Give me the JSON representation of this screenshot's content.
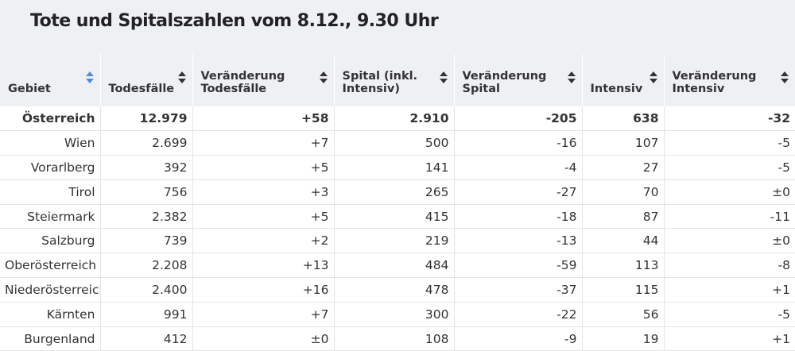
{
  "title": "Tote und Spitalszahlen vom 8.12., 9.30 Uhr",
  "columns": [
    {
      "label": "Gebiet",
      "sort_active": true
    },
    {
      "label": "Todesfälle",
      "sort_active": false
    },
    {
      "label": "Veränderung Todesfälle",
      "sort_active": false
    },
    {
      "label": "Spital (inkl. Intensiv)",
      "sort_active": false
    },
    {
      "label": "Veränderung Spital",
      "sort_active": false
    },
    {
      "label": "Intensiv",
      "sort_active": false
    },
    {
      "label": "Veränderung Intensiv",
      "sort_active": false
    }
  ],
  "rows": [
    [
      "Österreich",
      "12.979",
      "+58",
      "2.910",
      "-205",
      "638",
      "-32"
    ],
    [
      "Wien",
      "2.699",
      "+7",
      "500",
      "-16",
      "107",
      "-5"
    ],
    [
      "Vorarlberg",
      "392",
      "+5",
      "141",
      "-4",
      "27",
      "-5"
    ],
    [
      "Tirol",
      "756",
      "+3",
      "265",
      "-27",
      "70",
      "±0"
    ],
    [
      "Steiermark",
      "2.382",
      "+5",
      "415",
      "-18",
      "87",
      "-11"
    ],
    [
      "Salzburg",
      "739",
      "+2",
      "219",
      "-13",
      "44",
      "±0"
    ],
    [
      "Oberösterreich",
      "2.208",
      "+13",
      "484",
      "-59",
      "113",
      "-8"
    ],
    [
      "Niederösterreich",
      "2.400",
      "+16",
      "478",
      "-37",
      "115",
      "+1"
    ],
    [
      "Kärnten",
      "991",
      "+7",
      "300",
      "-22",
      "56",
      "-5"
    ],
    [
      "Burgenland",
      "412",
      "±0",
      "108",
      "-9",
      "19",
      "+1"
    ]
  ],
  "icons": {
    "sort": "sort-arrows-icon"
  },
  "colors": {
    "header_bg": "#eef0f4",
    "active_sort": "#4a90d9"
  }
}
